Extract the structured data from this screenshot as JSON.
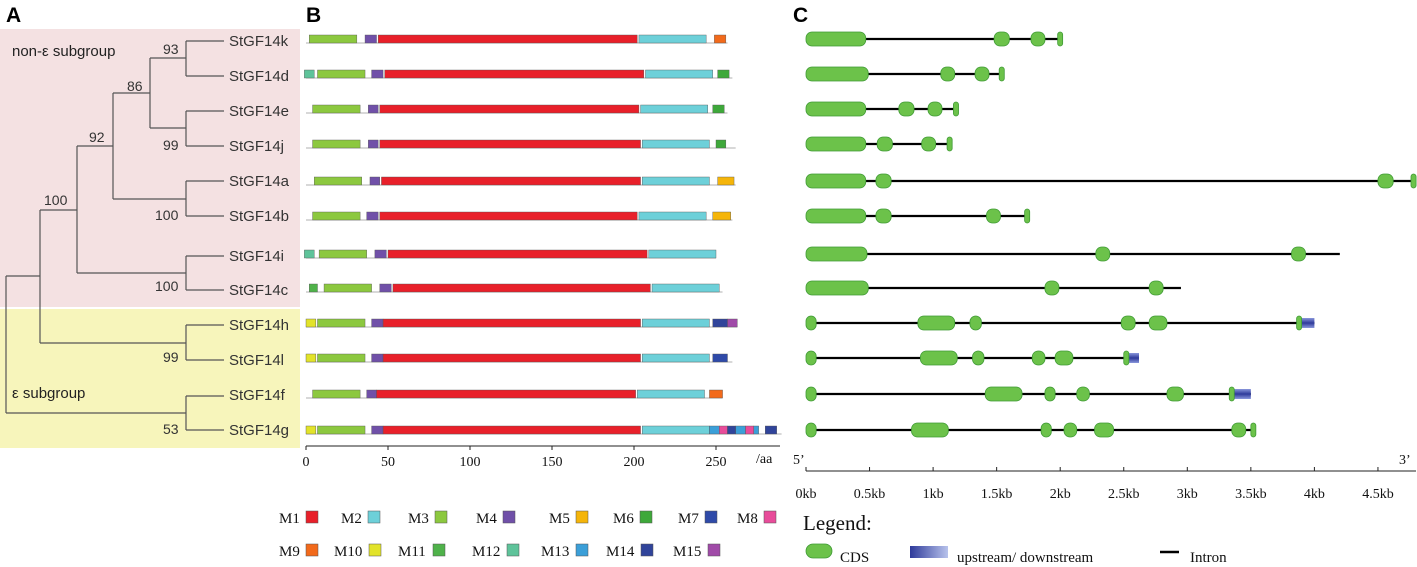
{
  "panels": [
    "A",
    "B",
    "C"
  ],
  "groups": {
    "non_epsilon": "non-ε subgroup",
    "epsilon": "ε subgroup"
  },
  "colors": {
    "non_epsilon_bg": "#f4e1e2",
    "epsilon_bg": "#f7f5bb",
    "exon": "#6cc24a",
    "exon_stroke": "#3f9a35",
    "utr_dark": "#2e3a9a",
    "utr_light": "#b8c3ec"
  },
  "genes": [
    "StGF14k",
    "StGF14d",
    "StGF14e",
    "StGF14j",
    "StGF14a",
    "StGF14b",
    "StGF14i",
    "StGF14c",
    "StGF14h",
    "StGF14l",
    "StGF14f",
    "StGF14g"
  ],
  "bootstrap": [
    {
      "label": "93",
      "node": "k-d"
    },
    {
      "label": "86",
      "node": "kd-ej"
    },
    {
      "label": "99",
      "node": "e-j"
    },
    {
      "label": "92",
      "node": "kdej-ab"
    },
    {
      "label": "100",
      "node": "a-b"
    },
    {
      "label": "100",
      "node": "root-nonepsilon"
    },
    {
      "label": "100",
      "node": "i-c"
    },
    {
      "label": "99",
      "node": "h-l"
    },
    {
      "label": "53",
      "node": "f-g"
    }
  ],
  "motifs": [
    {
      "id": "M1",
      "color": "#e8202a"
    },
    {
      "id": "M2",
      "color": "#6dd0d9"
    },
    {
      "id": "M3",
      "color": "#8cc83f"
    },
    {
      "id": "M4",
      "color": "#7050a8"
    },
    {
      "id": "M5",
      "color": "#f5b50a"
    },
    {
      "id": "M6",
      "color": "#3ea83a"
    },
    {
      "id": "M7",
      "color": "#2f4aa8"
    },
    {
      "id": "M8",
      "color": "#e84c9a"
    },
    {
      "id": "M9",
      "color": "#f26a1b"
    },
    {
      "id": "M10",
      "color": "#e2e32a"
    },
    {
      "id": "M11",
      "color": "#4fb24a"
    },
    {
      "id": "M12",
      "color": "#5ec39a"
    },
    {
      "id": "M13",
      "color": "#3b9fd8"
    },
    {
      "id": "M14",
      "color": "#30449a"
    },
    {
      "id": "M15",
      "color": "#a04aa8"
    }
  ],
  "protein_axis": {
    "ticks": [
      0,
      50,
      100,
      150,
      200,
      250
    ],
    "unit": "/aa",
    "max": 285
  },
  "proteins": [
    {
      "gene": "StGF14k",
      "length": 257,
      "motifs": [
        [
          "M3",
          2,
          31
        ],
        [
          "M4",
          36,
          43
        ],
        [
          "M1",
          44,
          202
        ],
        [
          "M2",
          203,
          244
        ],
        [
          "M9",
          249,
          256
        ]
      ]
    },
    {
      "gene": "StGF14d",
      "length": 260,
      "motifs": [
        [
          "M12",
          -1,
          5
        ],
        [
          "M3",
          7,
          36
        ],
        [
          "M4",
          40,
          47
        ],
        [
          "M1",
          48,
          206
        ],
        [
          "M2",
          207,
          248
        ],
        [
          "M6",
          251,
          258
        ]
      ]
    },
    {
      "gene": "StGF14e",
      "length": 257,
      "motifs": [
        [
          "M3",
          4,
          33
        ],
        [
          "M4",
          38,
          44
        ],
        [
          "M1",
          45,
          203
        ],
        [
          "M2",
          204,
          245
        ],
        [
          "M6",
          248,
          255
        ]
      ]
    },
    {
      "gene": "StGF14j",
      "length": 262,
      "motifs": [
        [
          "M3",
          4,
          33
        ],
        [
          "M4",
          38,
          44
        ],
        [
          "M1",
          45,
          204
        ],
        [
          "M2",
          205,
          246
        ],
        [
          "M6",
          250,
          256
        ]
      ]
    },
    {
      "gene": "StGF14a",
      "length": 262,
      "motifs": [
        [
          "M3",
          5,
          34
        ],
        [
          "M4",
          39,
          45
        ],
        [
          "M1",
          46,
          204
        ],
        [
          "M2",
          205,
          246
        ],
        [
          "M5",
          251,
          261
        ]
      ]
    },
    {
      "gene": "StGF14b",
      "length": 260,
      "motifs": [
        [
          "M3",
          4,
          33
        ],
        [
          "M4",
          37,
          44
        ],
        [
          "M1",
          45,
          202
        ],
        [
          "M2",
          203,
          244
        ],
        [
          "M5",
          248,
          259
        ]
      ]
    },
    {
      "gene": "StGF14i",
      "length": 250,
      "motifs": [
        [
          "M12",
          -1,
          5
        ],
        [
          "M3",
          8,
          37
        ],
        [
          "M4",
          42,
          49
        ],
        [
          "M1",
          50,
          208
        ],
        [
          "M2",
          209,
          250
        ]
      ]
    },
    {
      "gene": "StGF14c",
      "length": 254,
      "motifs": [
        [
          "M11",
          2,
          7
        ],
        [
          "M3",
          11,
          40
        ],
        [
          "M4",
          45,
          52
        ],
        [
          "M1",
          53,
          210
        ],
        [
          "M2",
          211,
          252
        ]
      ]
    },
    {
      "gene": "StGF14h",
      "length": 263,
      "motifs": [
        [
          "M10",
          0,
          6
        ],
        [
          "M3",
          7,
          36
        ],
        [
          "M4",
          40,
          47
        ],
        [
          "M1",
          47,
          204
        ],
        [
          "M2",
          205,
          246
        ],
        [
          "M14",
          248,
          257
        ],
        [
          "M15",
          257,
          263
        ]
      ]
    },
    {
      "gene": "StGF14l",
      "length": 260,
      "motifs": [
        [
          "M10",
          0,
          6
        ],
        [
          "M3",
          7,
          36
        ],
        [
          "M4",
          40,
          47
        ],
        [
          "M1",
          47,
          204
        ],
        [
          "M2",
          205,
          246
        ],
        [
          "M7",
          248,
          257
        ]
      ]
    },
    {
      "gene": "StGF14f",
      "length": 254,
      "motifs": [
        [
          "M3",
          4,
          33
        ],
        [
          "M4",
          37,
          43
        ],
        [
          "M1",
          43,
          201
        ],
        [
          "M2",
          202,
          243
        ],
        [
          "M9",
          246,
          254
        ]
      ]
    },
    {
      "gene": "StGF14g",
      "length": 290,
      "motifs": [
        [
          "M10",
          0,
          6
        ],
        [
          "M3",
          7,
          36
        ],
        [
          "M4",
          40,
          47
        ],
        [
          "M1",
          47,
          204
        ],
        [
          "M2",
          205,
          246
        ],
        [
          "M13",
          246,
          252
        ],
        [
          "M8",
          252,
          257
        ],
        [
          "M14",
          257,
          262
        ],
        [
          "M13",
          262,
          268
        ],
        [
          "M8",
          268,
          273
        ],
        [
          "M13",
          273,
          276
        ],
        [
          "M14",
          280,
          287
        ]
      ]
    }
  ],
  "gene_axis": {
    "ticks": [
      "0kb",
      "0.5kb",
      "1kb",
      "1.5kb",
      "2kb",
      "2.5kb",
      "3kb",
      "3.5kb",
      "4kb",
      "4.5kb"
    ],
    "five_prime": "5’",
    "three_prime": "3’",
    "max_kb": 4.8
  },
  "gene_structures": [
    {
      "gene": "StGF14k",
      "length": 2.0,
      "exons": [
        [
          0,
          0.47
        ],
        [
          1.48,
          1.6
        ],
        [
          1.77,
          1.88
        ],
        [
          1.98,
          2.0
        ]
      ],
      "utr": []
    },
    {
      "gene": "StGF14d",
      "length": 1.56,
      "exons": [
        [
          0,
          0.49
        ],
        [
          1.06,
          1.17
        ],
        [
          1.33,
          1.44
        ],
        [
          1.52,
          1.56
        ]
      ],
      "utr": []
    },
    {
      "gene": "StGF14e",
      "length": 1.2,
      "exons": [
        [
          0,
          0.47
        ],
        [
          0.73,
          0.85
        ],
        [
          0.96,
          1.07
        ],
        [
          1.16,
          1.2
        ]
      ],
      "utr": []
    },
    {
      "gene": "StGF14j",
      "length": 1.15,
      "exons": [
        [
          0,
          0.47
        ],
        [
          0.56,
          0.68
        ],
        [
          0.91,
          1.02
        ],
        [
          1.11,
          1.15
        ]
      ],
      "utr": []
    },
    {
      "gene": "StGF14a",
      "length": 4.8,
      "exons": [
        [
          0,
          0.47
        ],
        [
          0.55,
          0.67
        ],
        [
          4.5,
          4.62
        ],
        [
          4.76,
          4.8
        ]
      ],
      "utr": []
    },
    {
      "gene": "StGF14b",
      "length": 1.76,
      "exons": [
        [
          0,
          0.47
        ],
        [
          0.55,
          0.67
        ],
        [
          1.42,
          1.53
        ],
        [
          1.72,
          1.76
        ]
      ],
      "utr": []
    },
    {
      "gene": "StGF14i",
      "length": 4.2,
      "exons": [
        [
          0,
          0.48
        ],
        [
          2.28,
          2.39
        ],
        [
          3.82,
          3.93
        ]
      ],
      "utr": []
    },
    {
      "gene": "StGF14c",
      "length": 2.95,
      "exons": [
        [
          0,
          0.49
        ],
        [
          1.88,
          1.99
        ],
        [
          2.7,
          2.81
        ]
      ],
      "utr": []
    },
    {
      "gene": "StGF14h",
      "length": 4.0,
      "exons": [
        [
          0,
          0.08
        ],
        [
          0.88,
          1.17
        ],
        [
          1.29,
          1.38
        ],
        [
          2.48,
          2.59
        ],
        [
          2.7,
          2.84
        ],
        [
          3.86,
          3.89
        ]
      ],
      "utr": [
        [
          3.89,
          4.0
        ]
      ]
    },
    {
      "gene": "StGF14l",
      "length": 2.62,
      "exons": [
        [
          0,
          0.08
        ],
        [
          0.9,
          1.19
        ],
        [
          1.31,
          1.4
        ],
        [
          1.78,
          1.88
        ],
        [
          1.96,
          2.1
        ],
        [
          2.5,
          2.54
        ]
      ],
      "utr": [
        [
          2.54,
          2.62
        ]
      ]
    },
    {
      "gene": "StGF14f",
      "length": 3.5,
      "exons": [
        [
          0,
          0.08
        ],
        [
          1.41,
          1.7
        ],
        [
          1.88,
          1.96
        ],
        [
          2.13,
          2.23
        ],
        [
          2.84,
          2.97
        ],
        [
          3.33,
          3.36
        ]
      ],
      "utr": [
        [
          3.36,
          3.5
        ]
      ]
    },
    {
      "gene": "StGF14g",
      "length": 3.53,
      "exons": [
        [
          0,
          0.08
        ],
        [
          0.83,
          1.12
        ],
        [
          1.85,
          1.93
        ],
        [
          2.03,
          2.13
        ],
        [
          2.27,
          2.42
        ],
        [
          3.35,
          3.46
        ],
        [
          3.5,
          3.53
        ]
      ],
      "utr": []
    }
  ],
  "legend": {
    "title": "Legend:",
    "cds": "CDS",
    "utr": "upstream/ downstream",
    "intron": "Intron"
  }
}
